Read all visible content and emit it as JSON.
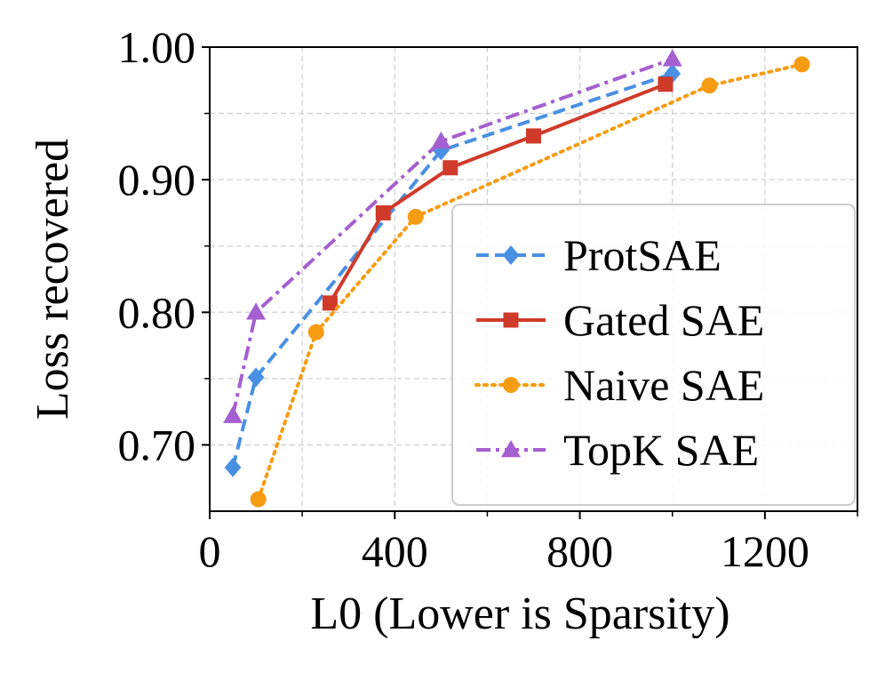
{
  "chart_data": {
    "type": "line",
    "title": "",
    "xlabel": "L0 (Lower is Sparsity)",
    "ylabel": "Loss recovered",
    "xlim": [
      0,
      1400
    ],
    "ylim": [
      0.65,
      1.0
    ],
    "xticks": [
      0,
      400,
      800,
      1200
    ],
    "xtick_labels": [
      "0",
      "400",
      "800",
      "1200"
    ],
    "xticks_minor": [
      200,
      600,
      1000,
      1400
    ],
    "yticks": [
      0.7,
      0.8,
      0.9,
      1.0
    ],
    "ytick_labels": [
      "0.70",
      "0.80",
      "0.90",
      "1.00"
    ],
    "yticks_minor": [
      0.75,
      0.85,
      0.95
    ],
    "grid": true,
    "legend_position": "lower-right",
    "series": [
      {
        "name": "ProtSAE",
        "color": "#4a90e2",
        "dash": "dashed",
        "marker": "diamond",
        "x": [
          50,
          100,
          500,
          1000
        ],
        "y": [
          0.683,
          0.751,
          0.922,
          0.98
        ]
      },
      {
        "name": "Gated SAE",
        "color": "#d03a2a",
        "dash": "solid",
        "marker": "square",
        "x": [
          260,
          375,
          520,
          700,
          985
        ],
        "y": [
          0.807,
          0.875,
          0.909,
          0.933,
          0.972
        ]
      },
      {
        "name": "Naive SAE",
        "color": "#f59c12",
        "dash": "dotted",
        "marker": "circle",
        "x": [
          105,
          230,
          445,
          1080,
          1280
        ],
        "y": [
          0.659,
          0.785,
          0.872,
          0.971,
          0.987
        ]
      },
      {
        "name": "TopK SAE",
        "color": "#a45fcf",
        "dash": "dashdot",
        "marker": "triangle",
        "x": [
          50,
          100,
          500,
          1000
        ],
        "y": [
          0.722,
          0.8,
          0.929,
          0.991
        ]
      }
    ]
  }
}
